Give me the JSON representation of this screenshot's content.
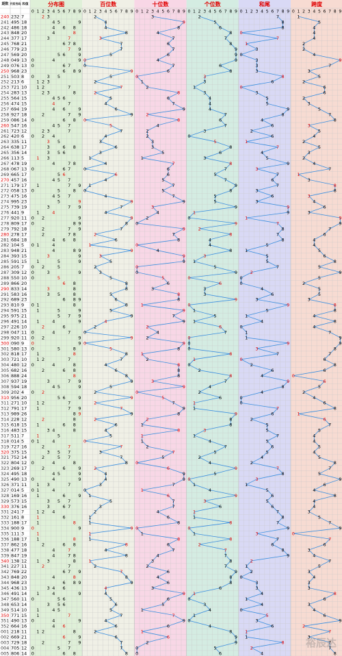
{
  "chart_data": {
    "type": "table",
    "headers": {
      "period": "期数",
      "number": "开奖号码",
      "sum": "和值",
      "distribution": "分布图",
      "hundreds": "百位数",
      "tens": "十位数",
      "units": "个位数",
      "sum_tail": "和尾",
      "span": "跨度"
    },
    "digit_labels": [
      "0",
      "1",
      "2",
      "3",
      "4",
      "5",
      "6",
      "7",
      "8",
      "9"
    ],
    "rows": [
      {
        "period": "240",
        "number": "232",
        "sum": "7"
      },
      {
        "period": "241",
        "number": "495",
        "sum": "18"
      },
      {
        "period": "242",
        "number": "486",
        "sum": "18"
      },
      {
        "period": "243",
        "number": "848",
        "sum": "20"
      },
      {
        "period": "244",
        "number": "377",
        "sum": "17"
      },
      {
        "period": "245",
        "number": "768",
        "sum": "21"
      },
      {
        "period": "246",
        "number": "779",
        "sum": "23"
      },
      {
        "period": "247",
        "number": "569",
        "sum": "20"
      },
      {
        "period": "248",
        "number": "049",
        "sum": "13"
      },
      {
        "period": "249",
        "number": "076",
        "sum": "13"
      },
      {
        "period": "250",
        "number": "968",
        "sum": "23"
      },
      {
        "period": "251",
        "number": "503",
        "sum": "8"
      },
      {
        "period": "252",
        "number": "213",
        "sum": "6"
      },
      {
        "period": "253",
        "number": "721",
        "sum": "10"
      },
      {
        "period": "254",
        "number": "283",
        "sum": "13"
      },
      {
        "period": "255",
        "number": "564",
        "sum": "15"
      },
      {
        "period": "256",
        "number": "474",
        "sum": "15"
      },
      {
        "period": "257",
        "number": "694",
        "sum": "19"
      },
      {
        "period": "258",
        "number": "927",
        "sum": "18"
      },
      {
        "period": "259",
        "number": "086",
        "sum": "14"
      },
      {
        "period": "260",
        "number": "547",
        "sum": "16"
      },
      {
        "period": "261",
        "number": "723",
        "sum": "12"
      },
      {
        "period": "262",
        "number": "420",
        "sum": "6"
      },
      {
        "period": "263",
        "number": "335",
        "sum": "11"
      },
      {
        "period": "264",
        "number": "638",
        "sum": "17"
      },
      {
        "period": "265",
        "number": "356",
        "sum": "14"
      },
      {
        "period": "266",
        "number": "113",
        "sum": "5"
      },
      {
        "period": "267",
        "number": "478",
        "sum": "19"
      },
      {
        "period": "268",
        "number": "067",
        "sum": "13"
      },
      {
        "period": "269",
        "number": "665",
        "sum": "17"
      },
      {
        "period": "270",
        "number": "457",
        "sum": "16"
      },
      {
        "period": "271",
        "number": "179",
        "sum": "17"
      },
      {
        "period": "272",
        "number": "058",
        "sum": "13"
      },
      {
        "period": "273",
        "number": "475",
        "sum": "16"
      },
      {
        "period": "274",
        "number": "995",
        "sum": "23"
      },
      {
        "period": "275",
        "number": "739",
        "sum": "19"
      },
      {
        "period": "276",
        "number": "441",
        "sum": "9"
      },
      {
        "period": "277",
        "number": "920",
        "sum": "11"
      },
      {
        "period": "278",
        "number": "809",
        "sum": "17"
      },
      {
        "period": "279",
        "number": "792",
        "sum": "18"
      },
      {
        "period": "280",
        "number": "278",
        "sum": "17"
      },
      {
        "period": "281",
        "number": "684",
        "sum": "18"
      },
      {
        "period": "282",
        "number": "104",
        "sum": "5"
      },
      {
        "period": "283",
        "number": "948",
        "sum": "21"
      },
      {
        "period": "284",
        "number": "393",
        "sum": "15"
      },
      {
        "period": "285",
        "number": "591",
        "sum": "15"
      },
      {
        "period": "286",
        "number": "205",
        "sum": "7"
      },
      {
        "period": "287",
        "number": "309",
        "sum": "12"
      },
      {
        "period": "288",
        "number": "550",
        "sum": "10"
      },
      {
        "period": "289",
        "number": "866",
        "sum": "20"
      },
      {
        "period": "290",
        "number": "833",
        "sum": "14"
      },
      {
        "period": "291",
        "number": "583",
        "sum": "16"
      },
      {
        "period": "292",
        "number": "689",
        "sum": "23"
      },
      {
        "period": "293",
        "number": "810",
        "sum": "9"
      },
      {
        "period": "294",
        "number": "591",
        "sum": "15"
      },
      {
        "period": "295",
        "number": "975",
        "sum": "21"
      },
      {
        "period": "296",
        "number": "491",
        "sum": "14"
      },
      {
        "period": "297",
        "number": "226",
        "sum": "10"
      },
      {
        "period": "298",
        "number": "047",
        "sum": "11"
      },
      {
        "period": "299",
        "number": "920",
        "sum": "11"
      },
      {
        "period": "300",
        "number": "090",
        "sum": "9"
      },
      {
        "period": "301",
        "number": "580",
        "sum": "13"
      },
      {
        "period": "302",
        "number": "818",
        "sum": "17"
      },
      {
        "period": "303",
        "number": "721",
        "sum": "10"
      },
      {
        "period": "304",
        "number": "480",
        "sum": "12"
      },
      {
        "period": "305",
        "number": "682",
        "sub": "",
        "sum": "16"
      },
      {
        "period": "306",
        "number": "888",
        "sum": "24"
      },
      {
        "period": "307",
        "number": "937",
        "sum": "19"
      },
      {
        "period": "308",
        "number": "594",
        "sum": "18"
      },
      {
        "period": "309",
        "number": "202",
        "sum": "4"
      },
      {
        "period": "310",
        "number": "956",
        "sum": "20"
      },
      {
        "period": "311",
        "number": "271",
        "sum": "10"
      },
      {
        "period": "312",
        "number": "791",
        "sum": "17"
      },
      {
        "period": "313",
        "number": "989",
        "sum": "26"
      },
      {
        "period": "314",
        "number": "228",
        "sum": "12"
      },
      {
        "period": "315",
        "number": "618",
        "sum": "15"
      },
      {
        "period": "316",
        "number": "483",
        "sum": "15"
      },
      {
        "period": "317",
        "number": "511",
        "sum": "7"
      },
      {
        "period": "318",
        "number": "014",
        "sum": "5"
      },
      {
        "period": "319",
        "number": "727",
        "sum": "16"
      },
      {
        "period": "320",
        "number": "375",
        "sum": "15"
      },
      {
        "period": "321",
        "number": "752",
        "sum": "14"
      },
      {
        "period": "322",
        "number": "804",
        "sum": "12"
      },
      {
        "period": "323",
        "number": "269",
        "sum": "17"
      },
      {
        "period": "324",
        "number": "495",
        "sum": "18"
      },
      {
        "period": "325",
        "number": "490",
        "sum": "13"
      },
      {
        "period": "326",
        "number": "371",
        "sum": "11"
      },
      {
        "period": "327",
        "number": "014",
        "sum": "5"
      },
      {
        "period": "328",
        "number": "169",
        "sum": "16"
      },
      {
        "period": "329",
        "number": "573",
        "sum": "15"
      },
      {
        "period": "330",
        "number": "376",
        "sum": "16"
      },
      {
        "period": "331",
        "number": "241",
        "sum": "7"
      },
      {
        "period": "332",
        "number": "161",
        "sum": "8"
      },
      {
        "period": "333",
        "number": "188",
        "sum": "17"
      },
      {
        "period": "334",
        "number": "900",
        "sum": "9"
      },
      {
        "period": "335",
        "number": "111",
        "sum": "3"
      },
      {
        "period": "336",
        "number": "188",
        "sum": "17"
      },
      {
        "period": "337",
        "number": "862",
        "sum": "16"
      },
      {
        "period": "338",
        "number": "477",
        "sum": "18"
      },
      {
        "period": "339",
        "number": "847",
        "sum": "19"
      },
      {
        "period": "340",
        "number": "138",
        "sum": "12"
      },
      {
        "period": "341",
        "number": "227",
        "sum": "11"
      },
      {
        "period": "342",
        "number": "769",
        "sum": "22"
      },
      {
        "period": "343",
        "number": "848",
        "sum": "20"
      },
      {
        "period": "344",
        "number": "968",
        "sum": "23"
      },
      {
        "period": "345",
        "number": "436",
        "sum": "13"
      },
      {
        "period": "346",
        "number": "491",
        "sum": "14"
      },
      {
        "period": "347",
        "number": "560",
        "sum": "11"
      },
      {
        "period": "348",
        "number": "653",
        "sum": "14"
      },
      {
        "period": "349",
        "number": "514",
        "sum": "10"
      },
      {
        "period": "350",
        "number": "771",
        "sum": "15"
      },
      {
        "period": "351",
        "number": "490",
        "sum": "13"
      },
      {
        "period": "352",
        "number": "664",
        "sum": "16"
      },
      {
        "period": "001",
        "number": "218",
        "sum": "11"
      },
      {
        "period": "002",
        "number": "669",
        "sum": "21"
      },
      {
        "period": "003",
        "number": "729",
        "sum": "18"
      },
      {
        "period": "004",
        "number": "705",
        "sum": "12"
      },
      {
        "period": "005",
        "number": "806",
        "sum": "14"
      }
    ],
    "section_colors": {
      "distribution": "#dff0d8",
      "hundreds": "#f0f0e6",
      "tens": "#f8d7e6",
      "units": "#d4ece2",
      "sum_tail": "#d9d9f5",
      "span": "#f7dbd2",
      "header_bg": "#ffffff",
      "line": "#3b8fe0",
      "hit_black": "#000000",
      "hit_red": "#e00000",
      "period_red": "#e00000",
      "grid": "#c8c8c8"
    },
    "watermark": "裕辰达"
  }
}
